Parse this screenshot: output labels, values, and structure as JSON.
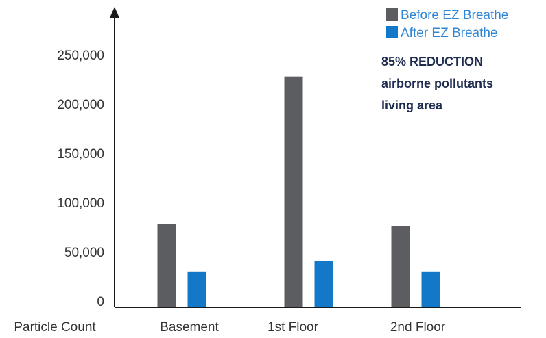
{
  "chart_data": {
    "type": "bar",
    "xlabel": "Particle Count",
    "categories": [
      "Basement",
      "1st Floor",
      "2nd Floor"
    ],
    "series": [
      {
        "name": "Before EZ Breathe",
        "color": "#5b5d61",
        "values": [
          78000,
          228000,
          76000
        ]
      },
      {
        "name": "After EZ Breathe",
        "color": "#1478c8",
        "values": [
          30000,
          41000,
          30000
        ]
      }
    ],
    "yticks": [
      "0",
      "50,000",
      "100,000",
      "150,000",
      "200,000",
      "250,000"
    ],
    "ylim": [
      0,
      250000
    ],
    "legend_position": "top-right",
    "legend_text_color": "#2f86d4",
    "annotation": [
      "85% REDUCTION",
      "airborne pollutants",
      "living area"
    ]
  }
}
